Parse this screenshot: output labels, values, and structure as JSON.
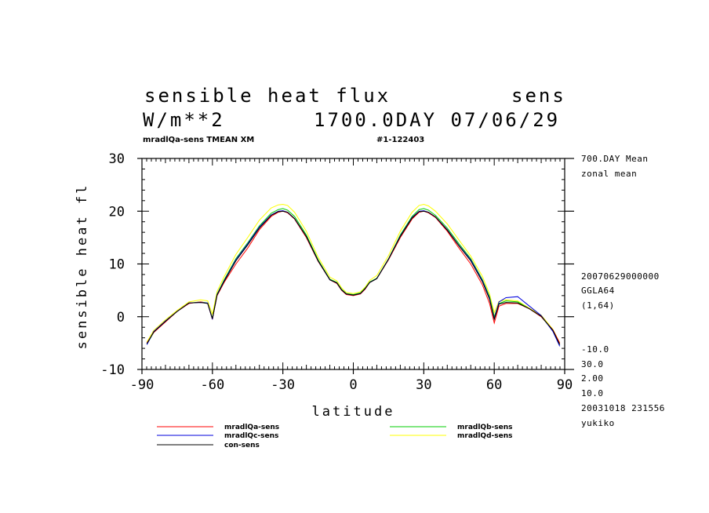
{
  "header": {
    "title": "sensible heat flux",
    "var_code": "sens",
    "units": "W/m**2",
    "time_stamp": "1700.0DAY 07/06/29",
    "subtitle_left": "mradlQa-sens TMEAN XM",
    "subtitle_right": "#1-122403"
  },
  "side_info": {
    "mean_label": "700.DAY Mean",
    "zonal_label": "zonal mean",
    "date_code": "20070629000000",
    "grid": "GGLA64",
    "index": "(1,64)",
    "contour_min": "-10.0",
    "contour_max": "30.0",
    "interval": "2.00",
    "scale": "10.0",
    "run_stamp": "20031018 231556",
    "user": "yukiko"
  },
  "chart_data": {
    "type": "line",
    "xlabel": "latitude",
    "ylabel": "sensible heat fl",
    "xlim": [
      -90,
      90
    ],
    "ylim": [
      -10,
      30
    ],
    "x_ticks": [
      -90,
      -60,
      -30,
      0,
      30,
      60,
      90
    ],
    "y_ticks": [
      -10,
      0,
      10,
      20,
      30
    ],
    "x_tick_labels": [
      "-90",
      "-60",
      "-30",
      "0",
      "30",
      "60",
      "90"
    ],
    "y_tick_labels": [
      "-10",
      "0",
      "10",
      "20",
      "30"
    ],
    "x": [
      -87.9,
      -85,
      -80,
      -75,
      -70,
      -65,
      -62,
      -60,
      -58,
      -55,
      -50,
      -45,
      -40,
      -35,
      -32,
      -30,
      -28,
      -25,
      -20,
      -15,
      -10,
      -7,
      -5,
      -3,
      0,
      3,
      5,
      7,
      10,
      15,
      20,
      25,
      28,
      30,
      32,
      35,
      40,
      45,
      50,
      55,
      58,
      60,
      62,
      65,
      70,
      75,
      80,
      85,
      87.9
    ],
    "series": [
      {
        "name": "mradlQa-sens",
        "color": "#ff0000",
        "values": [
          -5.0,
          -3.0,
          -1.0,
          1.0,
          2.5,
          2.8,
          2.5,
          -0.5,
          4.0,
          6.5,
          10.0,
          13.0,
          16.5,
          19.0,
          19.8,
          20.0,
          19.7,
          18.5,
          15.0,
          10.5,
          7.0,
          6.3,
          5.0,
          4.2,
          4.0,
          4.3,
          5.2,
          6.5,
          7.2,
          10.8,
          15.0,
          18.5,
          19.8,
          20.0,
          19.7,
          18.8,
          16.2,
          13.0,
          10.0,
          6.0,
          2.5,
          -1.2,
          2.0,
          2.5,
          2.5,
          1.5,
          0.0,
          -2.5,
          -5.0
        ]
      },
      {
        "name": "mradlQb-sens",
        "color": "#00cc00",
        "values": [
          -5.2,
          -3.0,
          -0.8,
          1.0,
          2.6,
          2.8,
          2.6,
          -0.3,
          4.3,
          7.0,
          11.0,
          14.0,
          17.2,
          19.6,
          20.3,
          20.5,
          20.2,
          19.0,
          15.5,
          10.8,
          7.1,
          6.5,
          5.2,
          4.4,
          4.2,
          4.5,
          5.4,
          6.6,
          7.3,
          11.0,
          15.5,
          19.0,
          20.3,
          20.5,
          20.2,
          19.2,
          16.8,
          13.8,
          11.0,
          7.0,
          3.8,
          0.0,
          2.5,
          3.0,
          2.8,
          1.5,
          0.0,
          -2.6,
          -5.3
        ]
      },
      {
        "name": "mradlQc-sens",
        "color": "#0000dd",
        "values": [
          -5.3,
          -2.8,
          -0.8,
          1.0,
          2.6,
          2.7,
          2.6,
          -0.5,
          4.2,
          6.8,
          10.8,
          13.8,
          17.0,
          19.3,
          20.0,
          20.1,
          19.8,
          18.6,
          15.2,
          10.6,
          7.0,
          6.4,
          5.1,
          4.3,
          4.1,
          4.4,
          5.3,
          6.5,
          7.2,
          10.9,
          15.3,
          18.8,
          20.0,
          20.1,
          19.8,
          18.9,
          16.5,
          13.5,
          10.8,
          6.8,
          3.5,
          -0.4,
          2.8,
          3.6,
          3.8,
          2.0,
          0.2,
          -2.8,
          -5.6
        ]
      },
      {
        "name": "mradlQd-sens",
        "color": "#ffff00",
        "values": [
          -4.8,
          -2.6,
          -0.6,
          1.2,
          2.8,
          3.2,
          3.0,
          0.5,
          4.8,
          7.6,
          11.8,
          15.0,
          18.3,
          20.6,
          21.2,
          21.3,
          21.1,
          19.8,
          16.2,
          11.3,
          7.5,
          6.8,
          5.5,
          4.6,
          4.4,
          4.7,
          5.6,
          6.9,
          7.8,
          11.6,
          16.2,
          19.8,
          21.1,
          21.3,
          21.0,
          20.0,
          17.6,
          14.5,
          11.5,
          7.6,
          4.3,
          0.8,
          2.9,
          3.2,
          3.0,
          1.6,
          0.3,
          -2.4,
          -5.0
        ]
      },
      {
        "name": "con-sens",
        "color": "#000000",
        "values": [
          -5.1,
          -2.9,
          -0.9,
          1.0,
          2.6,
          2.7,
          2.5,
          -0.4,
          4.1,
          6.7,
          10.6,
          13.6,
          16.8,
          19.2,
          19.9,
          20.0,
          19.8,
          18.6,
          15.2,
          10.6,
          7.0,
          6.4,
          5.1,
          4.3,
          4.1,
          4.4,
          5.3,
          6.5,
          7.2,
          10.9,
          15.2,
          18.7,
          19.9,
          20.0,
          19.8,
          18.9,
          16.4,
          13.4,
          10.6,
          6.6,
          3.3,
          -0.5,
          2.4,
          2.7,
          2.6,
          1.5,
          0.1,
          -2.6,
          -5.3
        ]
      }
    ]
  }
}
